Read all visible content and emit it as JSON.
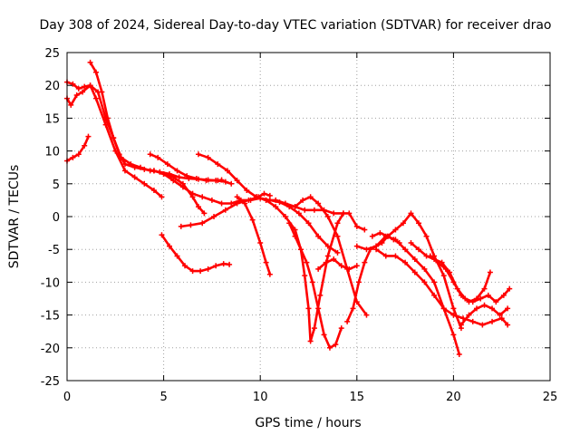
{
  "chart_data": {
    "type": "scatter",
    "title": "Day 308 of 2024, Sidereal Day-to-day VTEC variation (SDTVAR) for receiver drao",
    "xlabel": "GPS time / hours",
    "ylabel": "SDTVAR / TECUs",
    "xlim": [
      0,
      25
    ],
    "ylim": [
      -25,
      25
    ],
    "xticks": [
      0,
      5,
      10,
      15,
      20,
      25
    ],
    "yticks": [
      -25,
      -20,
      -15,
      -10,
      -5,
      0,
      5,
      10,
      15,
      20,
      25
    ],
    "grid": true,
    "marker": "plus",
    "color": "#ff0000",
    "series": [
      {
        "name": "s1",
        "x": [
          0.0,
          0.3,
          0.6,
          0.9,
          1.1
        ],
        "y": [
          8.5,
          9.0,
          9.5,
          10.8,
          12.2
        ]
      },
      {
        "name": "s2",
        "x": [
          0.0,
          0.3,
          0.6,
          0.9,
          1.2,
          1.6,
          2.0,
          2.4,
          2.8,
          3.3,
          3.8,
          4.3,
          4.8,
          5.3,
          5.8,
          6.3,
          6.8,
          7.3,
          7.8,
          8.0
        ],
        "y": [
          20.5,
          20.2,
          19.5,
          19.8,
          20.0,
          19.0,
          15.0,
          12.0,
          9.0,
          8.0,
          7.5,
          7.0,
          6.8,
          6.5,
          6.0,
          5.8,
          5.7,
          5.6,
          5.5,
          5.6
        ]
      },
      {
        "name": "s3",
        "x": [
          0.0,
          0.2,
          0.5,
          0.8,
          1.2,
          1.5,
          2.0,
          2.5,
          3.0,
          3.5,
          4.0,
          4.5,
          4.9
        ],
        "y": [
          18.0,
          17.0,
          18.5,
          19.0,
          20.0,
          18.0,
          14.0,
          10.0,
          7.0,
          6.0,
          5.0,
          4.0,
          3.0
        ]
      },
      {
        "name": "s4",
        "x": [
          1.2,
          1.5,
          1.8,
          2.1,
          2.4,
          2.7,
          3.0,
          3.5,
          4.0,
          4.5,
          5.0,
          5.5,
          6.0,
          6.5,
          6.8,
          7.1
        ],
        "y": [
          23.5,
          22.0,
          19.0,
          15.0,
          12.0,
          9.5,
          8.0,
          7.5,
          7.2,
          7.0,
          6.5,
          6.0,
          5.0,
          3.0,
          1.5,
          0.5
        ]
      },
      {
        "name": "s5",
        "x": [
          4.5,
          5.0,
          5.5,
          6.0,
          6.5,
          7.0,
          7.5,
          8.0,
          8.5,
          9.0,
          9.5,
          10.0,
          10.5,
          11.0,
          11.5,
          12.0,
          12.5,
          13.0,
          13.5,
          14.0
        ],
        "y": [
          7.0,
          6.5,
          5.5,
          4.5,
          3.5,
          3.0,
          2.5,
          2.0,
          2.0,
          2.5,
          2.5,
          2.8,
          2.5,
          2.2,
          1.5,
          0.5,
          -1.0,
          -3.0,
          -4.5,
          -5.5
        ]
      },
      {
        "name": "s6",
        "x": [
          4.3,
          4.7,
          5.2,
          5.7,
          6.2,
          6.7,
          7.2,
          7.7,
          8.2,
          8.5
        ],
        "y": [
          9.5,
          9.0,
          8.0,
          7.0,
          6.2,
          5.8,
          5.5,
          5.5,
          5.3,
          5.0
        ]
      },
      {
        "name": "s7",
        "x": [
          6.8,
          7.3,
          7.8,
          8.3,
          8.8,
          9.3,
          9.8,
          10.3,
          10.8,
          11.3,
          11.8,
          12.3,
          12.8,
          13.3,
          13.8,
          14.3
        ],
        "y": [
          9.5,
          9.0,
          8.0,
          7.0,
          5.5,
          4.0,
          3.0,
          2.5,
          2.5,
          2.0,
          1.5,
          1.0,
          1.0,
          1.0,
          0.5,
          0.5
        ]
      },
      {
        "name": "s8",
        "x": [
          5.9,
          6.4,
          7.0,
          7.6,
          8.2,
          8.8,
          9.4,
          9.9,
          10.2,
          10.5
        ],
        "y": [
          -1.5,
          -1.3,
          -1.0,
          0.0,
          1.0,
          2.0,
          2.5,
          3.0,
          3.5,
          3.2
        ]
      },
      {
        "name": "s9",
        "x": [
          4.9,
          5.3,
          5.7,
          6.1,
          6.5,
          6.9,
          7.3,
          7.7,
          8.1,
          8.4
        ],
        "y": [
          -2.8,
          -4.5,
          -6.0,
          -7.5,
          -8.3,
          -8.3,
          -8.0,
          -7.5,
          -7.2,
          -7.3
        ]
      },
      {
        "name": "s10",
        "x": [
          8.8,
          9.2,
          9.6,
          10.0,
          10.3,
          10.5
        ],
        "y": [
          3.0,
          2.0,
          -0.5,
          -4.0,
          -7.0,
          -8.8
        ]
      },
      {
        "name": "s11",
        "x": [
          9.8,
          10.3,
          10.8,
          11.3,
          11.8,
          12.1,
          12.3,
          12.5,
          12.6,
          12.8,
          13.1,
          13.5,
          14.0,
          14.3,
          14.6,
          15.0,
          15.4
        ],
        "y": [
          3.0,
          2.5,
          1.5,
          0.0,
          -2.0,
          -5.0,
          -9.0,
          -14.0,
          -19.0,
          -17.0,
          -12.0,
          -6.0,
          -1.0,
          0.5,
          0.5,
          -1.5,
          -2.0
        ]
      },
      {
        "name": "s12",
        "x": [
          11.5,
          11.8,
          12.1,
          12.4,
          12.7,
          13.0,
          13.3,
          13.6,
          13.9,
          14.2
        ],
        "y": [
          -1.0,
          -3.0,
          -5.0,
          -7.0,
          -10.0,
          -14.0,
          -18.0,
          -20.0,
          -19.5,
          -17.0
        ]
      },
      {
        "name": "s13",
        "x": [
          13.0,
          13.4,
          13.8,
          14.2,
          14.6,
          15.0
        ],
        "y": [
          -8.0,
          -7.0,
          -6.5,
          -7.5,
          -8.0,
          -7.5
        ]
      },
      {
        "name": "s14",
        "x": [
          11.8,
          12.2,
          12.6,
          13.0,
          13.5,
          14.0,
          14.5,
          15.0,
          15.5
        ],
        "y": [
          1.5,
          2.5,
          3.0,
          2.0,
          0.0,
          -3.0,
          -8.0,
          -13.0,
          -15.0
        ]
      },
      {
        "name": "s15",
        "x": [
          14.5,
          14.8,
          15.1,
          15.4,
          15.7,
          16.0,
          16.3,
          16.6,
          16.9,
          17.2
        ],
        "y": [
          -16.0,
          -14.0,
          -10.0,
          -7.0,
          -5.0,
          -4.5,
          -4.0,
          -3.0,
          -3.5,
          -4.0
        ]
      },
      {
        "name": "s16",
        "x": [
          15.0,
          15.5,
          16.0,
          16.5,
          17.0,
          17.5,
          18.0,
          18.5,
          19.0,
          19.5,
          20.0,
          20.3
        ],
        "y": [
          -4.5,
          -5.0,
          -4.5,
          -3.0,
          -3.5,
          -5.0,
          -6.5,
          -8.0,
          -10.0,
          -14.0,
          -18.0,
          -21.0
        ]
      },
      {
        "name": "s17",
        "x": [
          15.8,
          16.2,
          16.6,
          17.0,
          17.4,
          17.8,
          18.2,
          18.6,
          19.0,
          19.5,
          20.0,
          20.4
        ],
        "y": [
          -3.0,
          -2.5,
          -3.0,
          -2.0,
          -1.0,
          0.5,
          -1.0,
          -3.0,
          -6.0,
          -9.0,
          -14.0,
          -17.0
        ]
      },
      {
        "name": "s18",
        "x": [
          16.0,
          16.5,
          17.0,
          17.5,
          18.0,
          18.5,
          19.0,
          19.5,
          20.0,
          20.5,
          21.0,
          21.5,
          22.0,
          22.5,
          22.8
        ],
        "y": [
          -5.0,
          -6.0,
          -6.0,
          -7.0,
          -8.5,
          -10.0,
          -12.0,
          -14.0,
          -15.0,
          -15.5,
          -16.0,
          -16.5,
          -16.0,
          -15.5,
          -16.5
        ]
      },
      {
        "name": "s19",
        "x": [
          17.8,
          18.2,
          18.6,
          19.0,
          19.4,
          19.8,
          20.2,
          20.6,
          21.0,
          21.4,
          21.8,
          22.2,
          22.6,
          22.9
        ],
        "y": [
          -4.0,
          -5.0,
          -6.0,
          -6.5,
          -7.0,
          -8.5,
          -11.0,
          -12.5,
          -13.0,
          -12.5,
          -12.0,
          -13.0,
          -12.0,
          -11.0
        ]
      },
      {
        "name": "s20",
        "x": [
          20.4,
          20.8,
          21.2,
          21.6,
          22.0,
          22.4,
          22.8
        ],
        "y": [
          -16.5,
          -15.0,
          -14.0,
          -13.5,
          -14.0,
          -15.0,
          -14.0
        ]
      },
      {
        "name": "s21",
        "x": [
          18.8,
          19.2,
          19.6,
          20.0,
          20.4,
          20.8,
          21.2,
          21.6,
          21.9
        ],
        "y": [
          -6.0,
          -7.0,
          -8.0,
          -10.0,
          -12.0,
          -13.0,
          -12.5,
          -11.0,
          -8.5
        ]
      }
    ]
  }
}
